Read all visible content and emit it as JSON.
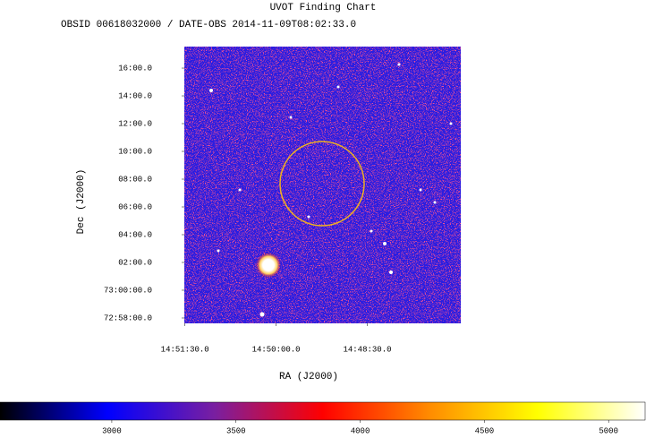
{
  "chart_data": {
    "type": "image",
    "title": "UVOT Finding Chart",
    "subtitle": "OBSID 00618032000 / DATE-OBS 2014-11-09T08:02:33.0",
    "xlabel": "RA (J2000)",
    "ylabel": "Dec (J2000)",
    "xlim": [
      14.8585,
      14.7827
    ],
    "xticks": [
      {
        "value": 14.858333,
        "label": "14:51:30.0"
      },
      {
        "value": 14.833333,
        "label": "14:50:00.0"
      },
      {
        "value": 14.808333,
        "label": "14:48:30.0"
      }
    ],
    "ylim": [
      72.9602,
      73.2925
    ],
    "yticks": [
      {
        "value": 73.266667,
        "label": "16:00.0"
      },
      {
        "value": 73.233333,
        "label": "14:00.0"
      },
      {
        "value": 73.2,
        "label": "12:00.0"
      },
      {
        "value": 73.166667,
        "label": "10:00.0"
      },
      {
        "value": 73.133333,
        "label": "08:00.0"
      },
      {
        "value": 73.1,
        "label": "06:00.0"
      },
      {
        "value": 73.066667,
        "label": "04:00.0"
      },
      {
        "value": 73.033333,
        "label": "02:00.0"
      },
      {
        "value": 73.0,
        "label": "73:00:00.0"
      },
      {
        "value": 72.966667,
        "label": "72:58:00.0"
      }
    ],
    "colorbar": {
      "lim": [
        2550,
        5147
      ],
      "ticks": [
        3000,
        3500,
        4000,
        4500,
        5000
      ],
      "colormap": [
        "#000000",
        "#0000ff",
        "#7a1fa0",
        "#ff0000",
        "#ff8c00",
        "#ffff00",
        "#ffffff"
      ]
    }
  }
}
